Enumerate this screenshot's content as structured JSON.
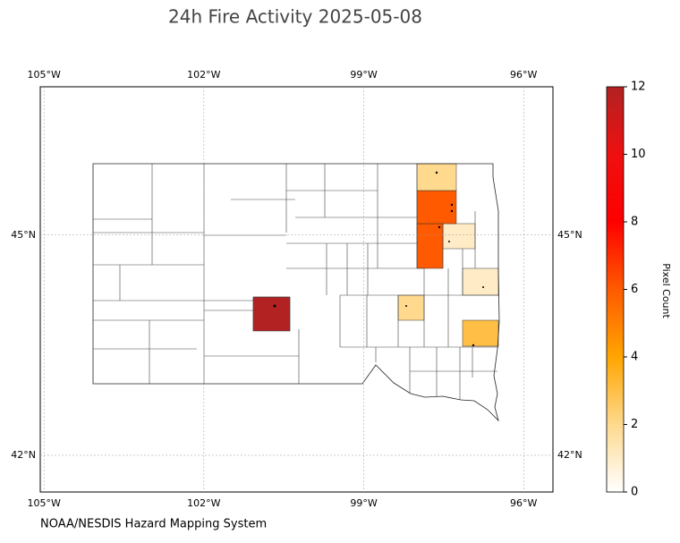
{
  "chart_data": {
    "type": "map",
    "title": "24h Fire Activity 2025-05-08",
    "source": "NOAA/NESDIS Hazard Mapping System",
    "xlim": [
      -105.07,
      -95.45
    ],
    "ylim": [
      41.5,
      47.02
    ],
    "xticks": [
      {
        "value": -105,
        "label": "105°W"
      },
      {
        "value": -102,
        "label": "102°W"
      },
      {
        "value": -99,
        "label": "99°W"
      },
      {
        "value": -96,
        "label": "96°W"
      }
    ],
    "yticks": [
      {
        "value": 45,
        "label": "45°N"
      },
      {
        "value": 42,
        "label": "42°N"
      }
    ],
    "grid": true,
    "fire_areas": {
      "values": [
        2,
        6,
        6,
        1,
        1,
        2,
        3,
        12
      ]
    },
    "colorbar": {
      "label": "Pixel Count",
      "clim": [
        0,
        12
      ],
      "ticks": [
        0,
        2,
        4,
        6,
        8,
        10,
        12
      ],
      "colors": [
        "#ffffff",
        "#fed98e",
        "#ffa500",
        "#ff5a00",
        "#ff0000",
        "#ee1010",
        "#b22222"
      ]
    }
  }
}
